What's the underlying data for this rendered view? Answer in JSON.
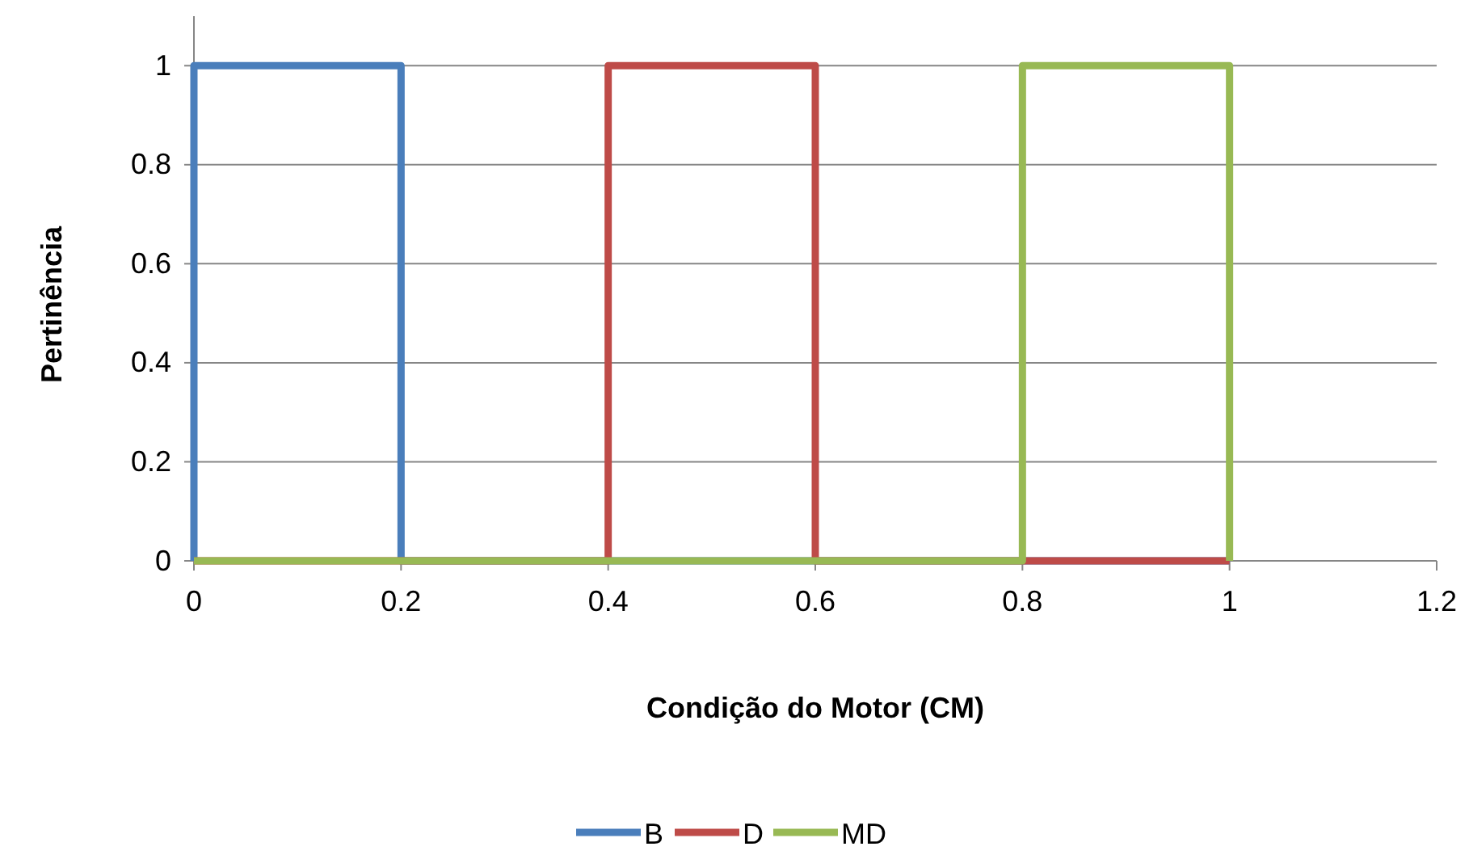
{
  "chart_data": {
    "type": "line",
    "xlabel": "Condição do Motor (CM)",
    "ylabel": "Pertinência",
    "xlim": [
      0,
      1.2
    ],
    "xticks": [
      0,
      0.2,
      0.4,
      0.6,
      0.8,
      1,
      1.2
    ],
    "ylim": [
      0,
      1.1
    ],
    "yticks": [
      0,
      0.2,
      0.4,
      0.6,
      0.8,
      1
    ],
    "grid": "y",
    "legend": "bottom",
    "marker": "none",
    "line_style": "solid",
    "series": [
      {
        "name": "B",
        "color": "#4a7ebb",
        "x": [
          0,
          0,
          0.2,
          0.2,
          1
        ],
        "values": [
          0,
          1,
          1,
          0,
          0
        ]
      },
      {
        "name": "D",
        "color": "#be4b48",
        "x": [
          0,
          0.4,
          0.4,
          0.6,
          0.6,
          1
        ],
        "values": [
          0,
          0,
          1,
          1,
          0,
          0
        ]
      },
      {
        "name": "MD",
        "color": "#98b954",
        "x": [
          0,
          0.8,
          0.8,
          1,
          1
        ],
        "values": [
          0,
          0,
          1,
          1,
          0
        ]
      }
    ]
  }
}
